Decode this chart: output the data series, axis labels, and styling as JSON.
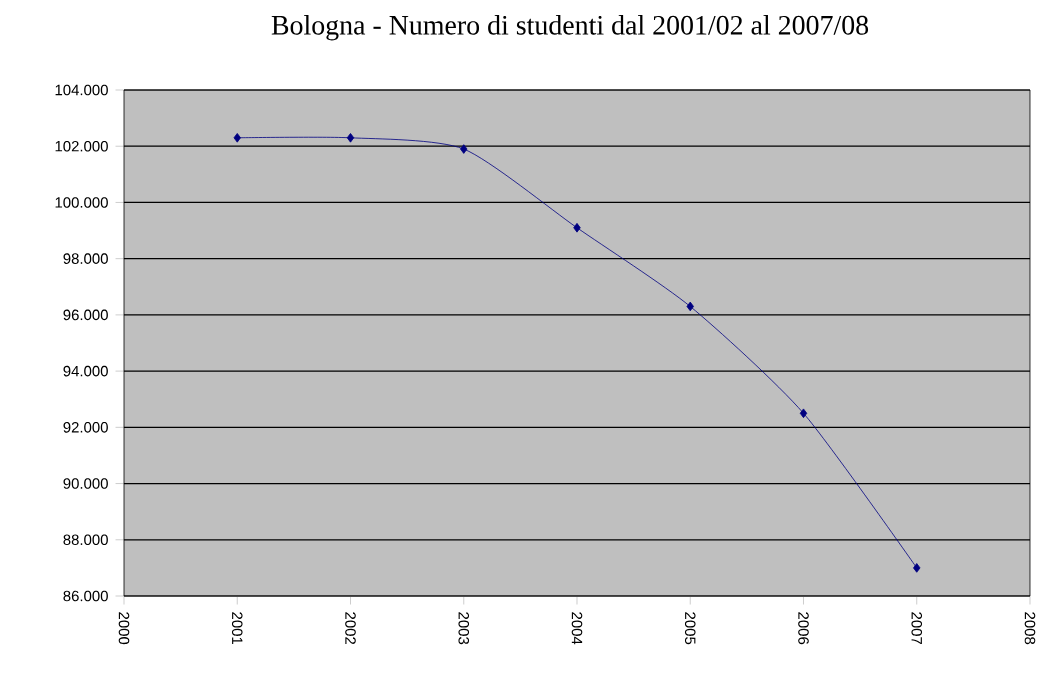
{
  "chart_data": {
    "type": "line",
    "title": "Bologna - Numero di studenti dal 2001/02  al 2007/08",
    "x": [
      2001,
      2002,
      2003,
      2004,
      2005,
      2006,
      2007
    ],
    "series": [
      {
        "color": "#000080",
        "values": [
          102300,
          102300,
          101900,
          99100,
          96300,
          92500,
          87000
        ]
      }
    ],
    "xlim": [
      2000,
      2008
    ],
    "xticks": [
      2000,
      2001,
      2002,
      2003,
      2004,
      2005,
      2006,
      2007,
      2008
    ],
    "ylim": [
      86000,
      104000
    ],
    "yticks": [
      {
        "value": 86000,
        "label": "86.000"
      },
      {
        "value": 88000,
        "label": "88.000"
      },
      {
        "value": 90000,
        "label": "90.000"
      },
      {
        "value": 92000,
        "label": "92.000"
      },
      {
        "value": 94000,
        "label": "94.000"
      },
      {
        "value": 96000,
        "label": "96.000"
      },
      {
        "value": 98000,
        "label": "98.000"
      },
      {
        "value": 100000,
        "label": "100.000"
      },
      {
        "value": 102000,
        "label": "102.000"
      },
      {
        "value": 104000,
        "label": "104.000"
      }
    ],
    "grid": "y",
    "marker": "diamond",
    "line_style": "solid"
  }
}
